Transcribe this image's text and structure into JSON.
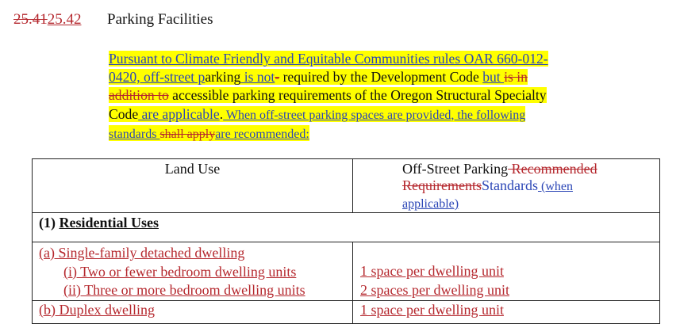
{
  "heading": {
    "old_number": "25.41",
    "new_number": "25.42",
    "title": "Parking Facilities"
  },
  "paragraph": {
    "line1": "Pursuant to Climate Friendly and Equitable Communities rules OAR 660-012-",
    "line2_a": "0420, off-street p",
    "line2_b": "arking",
    "line2_c": " is not",
    "line2_d": "-",
    "line2_e": " required by the Development Code ",
    "line2_f": "but ",
    "line2_g": "is in",
    "line3_a": "addition to",
    "line3_b": " accessible parking requirements of the Oregon Structural Specialty",
    "line4_a": "Code",
    "line4_b": " are applicable",
    "line4_c": ".",
    "line4_d": " When off-street parking spaces are provided, the following",
    "line5_a": "standards ",
    "line5_b": "shall apply",
    "line5_c": "are recommended:"
  },
  "table": {
    "header_land_use": "Land Use",
    "header_parking_a": "Off-Street Parking",
    "header_parking_b": " Recommended",
    "header_parking_c": "Requirements",
    "header_parking_d": "Standards",
    "header_parking_e": " (when",
    "header_parking_f": "applicable)",
    "section_number": "(1) ",
    "section_title": "Residential Uses",
    "row_a_title": "(a) Single-family detached dwelling",
    "row_a_i": "(i) Two or fewer bedroom dwelling units",
    "row_a_ii": "(ii) Three or more bedroom dwelling units",
    "row_a_i_req": "1 space per dwelling unit",
    "row_a_ii_req": "2 spaces per dwelling unit",
    "row_b_title": "(b) Duplex dwelling",
    "row_b_req": "1 space per dwelling unit"
  }
}
